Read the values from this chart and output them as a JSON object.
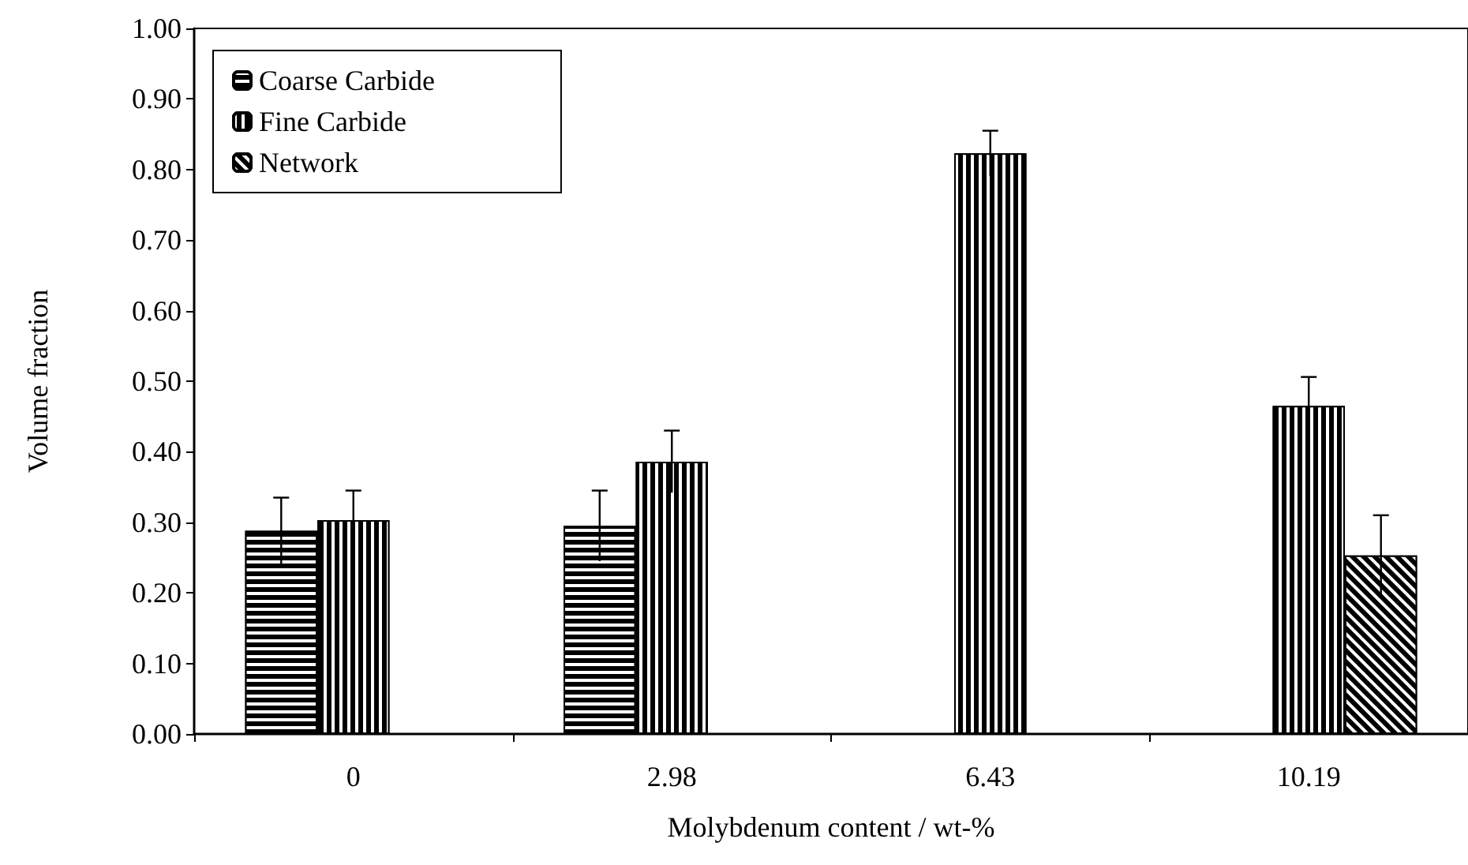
{
  "chart_data": {
    "type": "bar",
    "xlabel": "Molybdenum content / wt-%",
    "ylabel": "Volume fraction",
    "categories": [
      "0",
      "2.98",
      "6.43",
      "10.19"
    ],
    "series": [
      {
        "name": "Coarse Carbide",
        "color": "#000000",
        "values": [
          0.288,
          0.295,
          null,
          null
        ],
        "errors": [
          0.047,
          0.05,
          null,
          null
        ]
      },
      {
        "name": "Fine Carbide",
        "color": "#000000",
        "values": [
          0.303,
          0.386,
          0.823,
          0.465
        ],
        "errors": [
          0.042,
          0.044,
          0.032,
          0.041
        ]
      },
      {
        "name": "Network",
        "color": "#000000",
        "values": [
          null,
          null,
          null,
          0.253
        ],
        "errors": [
          null,
          null,
          null,
          0.057
        ]
      }
    ],
    "ylim": [
      0,
      1
    ],
    "yticks": [
      {
        "value": 0,
        "label": "0.00"
      },
      {
        "value": 0.1,
        "label": "0.10"
      },
      {
        "value": 0.2,
        "label": "0.20"
      },
      {
        "value": 0.3,
        "label": "0.30"
      },
      {
        "value": 0.4,
        "label": "0.40"
      },
      {
        "value": 0.5,
        "label": "0.50"
      },
      {
        "value": 0.6,
        "label": "0.60"
      },
      {
        "value": 0.7,
        "label": "0.70"
      },
      {
        "value": 0.8,
        "label": "0.80"
      },
      {
        "value": 0.9,
        "label": "0.90"
      },
      {
        "value": 1,
        "label": "1.00"
      }
    ],
    "grid": false,
    "legend": "top left"
  }
}
